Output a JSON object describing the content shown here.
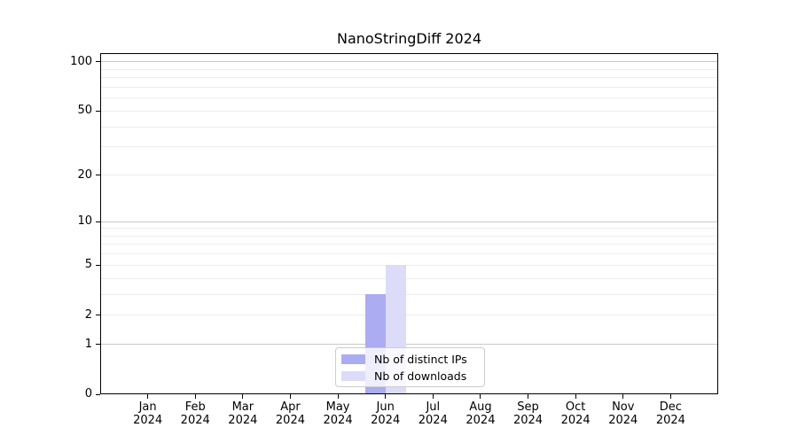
{
  "chart_data": {
    "type": "bar",
    "title": "NanoStringDiff 2024",
    "categories": [
      "Jan",
      "Feb",
      "Mar",
      "Apr",
      "May",
      "Jun",
      "Jul",
      "Aug",
      "Sep",
      "Oct",
      "Nov",
      "Dec"
    ],
    "category_year": "2024",
    "series": [
      {
        "name": "Nb of distinct IPs",
        "color": "#abacf2",
        "values": [
          0,
          0,
          0,
          0,
          0,
          3,
          0,
          0,
          0,
          0,
          0,
          0
        ]
      },
      {
        "name": "Nb of downloads",
        "color": "#dcdcf9",
        "values": [
          0,
          0,
          0,
          0,
          0,
          5,
          0,
          0,
          0,
          0,
          0,
          0
        ]
      }
    ],
    "scale": "log1p",
    "ylim": [
      0,
      113
    ],
    "y_ticks": [
      0,
      1,
      2,
      5,
      10,
      20,
      50,
      100
    ],
    "major_gridlines": [
      1,
      10,
      100
    ],
    "minor_gridlines": [
      2,
      3,
      4,
      5,
      6,
      7,
      8,
      9,
      20,
      30,
      40,
      50,
      60,
      70,
      80,
      90
    ],
    "grid_color_major": "#c9c9c9",
    "grid_color_minor": "#ededed",
    "legend_position": "lower center"
  }
}
